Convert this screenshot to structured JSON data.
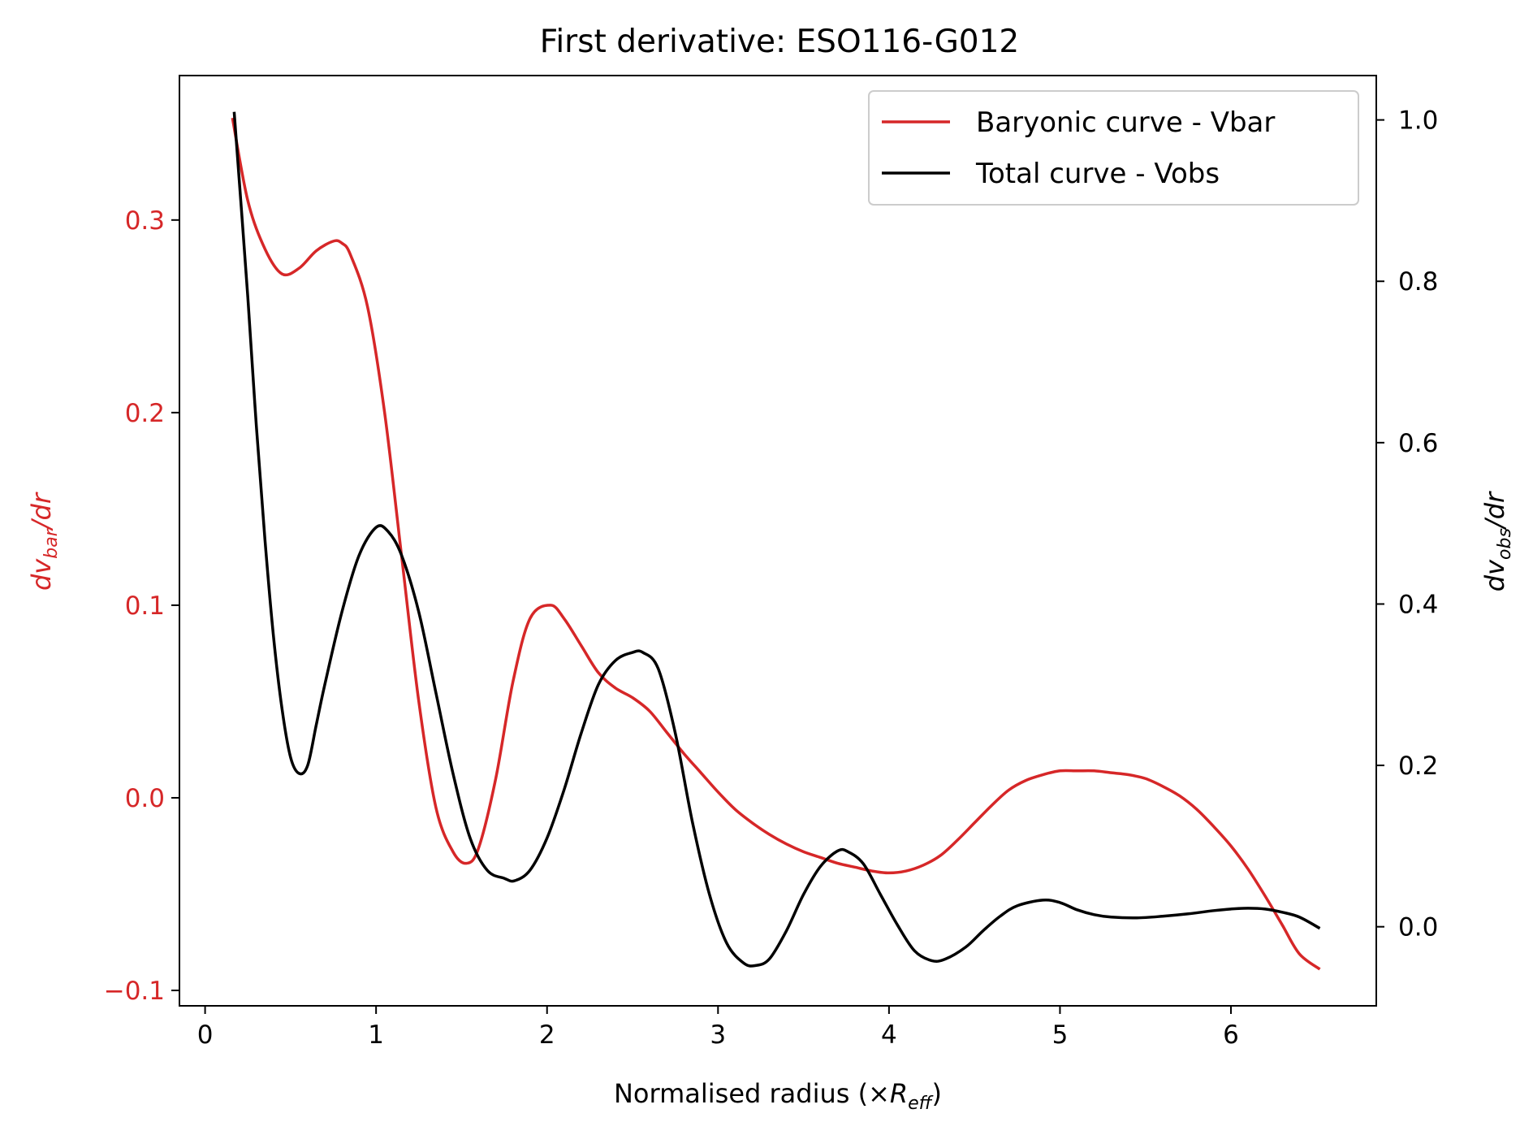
{
  "chart_data": {
    "type": "line",
    "title": "First derivative: ESO116-G012",
    "xlabel": {
      "main": "Normalised radius (×",
      "var": "R",
      "sub": "eff",
      "close": ")"
    },
    "ylabel_left": {
      "var": "dv",
      "sub": "bar",
      "rest": "/dr"
    },
    "ylabel_right": {
      "var": "dv",
      "sub": "obs",
      "rest": "/dr"
    },
    "xlim": [
      -0.15,
      6.85
    ],
    "ylim_left": [
      -0.108,
      0.375
    ],
    "ylim_right": [
      -0.098,
      1.055
    ],
    "xticks": [
      0,
      1,
      2,
      3,
      4,
      5,
      6
    ],
    "xtick_labels": [
      "0",
      "1",
      "2",
      "3",
      "4",
      "5",
      "6"
    ],
    "yticks_left": [
      -0.1,
      0.0,
      0.1,
      0.2,
      0.3
    ],
    "ytick_labels_left": [
      "−0.1",
      "0.0",
      "0.1",
      "0.2",
      "0.3"
    ],
    "yticks_right": [
      0.0,
      0.2,
      0.4,
      0.6,
      0.8,
      1.0
    ],
    "ytick_labels_right": [
      "0.0",
      "0.2",
      "0.4",
      "0.6",
      "0.8",
      "1.0"
    ],
    "grid": false,
    "legend_position": "top-right",
    "series": [
      {
        "name": "Baryonic curve - Vbar",
        "axis": "left",
        "color": "#d62728",
        "x": [
          0.16,
          0.25,
          0.35,
          0.45,
          0.55,
          0.65,
          0.75,
          0.8,
          0.85,
          0.95,
          1.05,
          1.15,
          1.25,
          1.35,
          1.45,
          1.53,
          1.6,
          1.7,
          1.8,
          1.9,
          2.02,
          2.1,
          2.2,
          2.3,
          2.4,
          2.5,
          2.6,
          2.7,
          2.8,
          2.9,
          3.0,
          3.1,
          3.2,
          3.3,
          3.4,
          3.5,
          3.6,
          3.7,
          3.8,
          3.9,
          4.0,
          4.1,
          4.2,
          4.3,
          4.4,
          4.5,
          4.6,
          4.7,
          4.8,
          4.9,
          5.0,
          5.1,
          5.2,
          5.3,
          5.4,
          5.5,
          5.6,
          5.7,
          5.8,
          5.9,
          6.0,
          6.1,
          6.2,
          6.3,
          6.4,
          6.52
        ],
        "values": [
          0.353,
          0.31,
          0.285,
          0.272,
          0.275,
          0.284,
          0.289,
          0.288,
          0.282,
          0.255,
          0.2,
          0.125,
          0.05,
          -0.005,
          -0.028,
          -0.034,
          -0.026,
          0.01,
          0.06,
          0.093,
          0.1,
          0.093,
          0.079,
          0.065,
          0.057,
          0.052,
          0.045,
          0.034,
          0.023,
          0.013,
          0.003,
          -0.006,
          -0.013,
          -0.019,
          -0.024,
          -0.028,
          -0.031,
          -0.034,
          -0.036,
          -0.038,
          -0.039,
          -0.038,
          -0.035,
          -0.03,
          -0.022,
          -0.013,
          -0.004,
          0.004,
          0.009,
          0.012,
          0.014,
          0.014,
          0.014,
          0.013,
          0.012,
          0.01,
          0.006,
          0.001,
          -0.006,
          -0.015,
          -0.025,
          -0.037,
          -0.051,
          -0.066,
          -0.081,
          -0.089
        ]
      },
      {
        "name": "Total curve - Vobs",
        "axis": "right",
        "color": "#000000",
        "x": [
          0.17,
          0.25,
          0.3,
          0.35,
          0.4,
          0.45,
          0.5,
          0.55,
          0.6,
          0.65,
          0.7,
          0.8,
          0.9,
          1.0,
          1.07,
          1.15,
          1.25,
          1.35,
          1.45,
          1.55,
          1.65,
          1.75,
          1.81,
          1.9,
          2.0,
          2.1,
          2.2,
          2.3,
          2.4,
          2.5,
          2.56,
          2.65,
          2.75,
          2.85,
          2.95,
          3.05,
          3.15,
          3.22,
          3.3,
          3.4,
          3.5,
          3.6,
          3.7,
          3.76,
          3.85,
          3.95,
          4.05,
          4.15,
          4.25,
          4.33,
          4.45,
          4.55,
          4.65,
          4.75,
          4.9,
          5.0,
          5.1,
          5.2,
          5.3,
          5.45,
          5.6,
          5.75,
          5.9,
          6.0,
          6.1,
          6.2,
          6.3,
          6.4,
          6.52
        ],
        "values": [
          1.01,
          0.78,
          0.62,
          0.48,
          0.36,
          0.27,
          0.21,
          0.19,
          0.2,
          0.25,
          0.3,
          0.39,
          0.46,
          0.495,
          0.49,
          0.46,
          0.39,
          0.29,
          0.19,
          0.11,
          0.07,
          0.06,
          0.057,
          0.07,
          0.11,
          0.17,
          0.24,
          0.3,
          0.33,
          0.34,
          0.34,
          0.32,
          0.24,
          0.13,
          0.04,
          -0.02,
          -0.045,
          -0.048,
          -0.04,
          -0.005,
          0.04,
          0.075,
          0.094,
          0.093,
          0.078,
          0.04,
          0.002,
          -0.03,
          -0.042,
          -0.04,
          -0.025,
          -0.005,
          0.013,
          0.026,
          0.033,
          0.03,
          0.021,
          0.015,
          0.012,
          0.011,
          0.013,
          0.016,
          0.02,
          0.022,
          0.023,
          0.022,
          0.018,
          0.012,
          -0.002
        ]
      }
    ]
  }
}
